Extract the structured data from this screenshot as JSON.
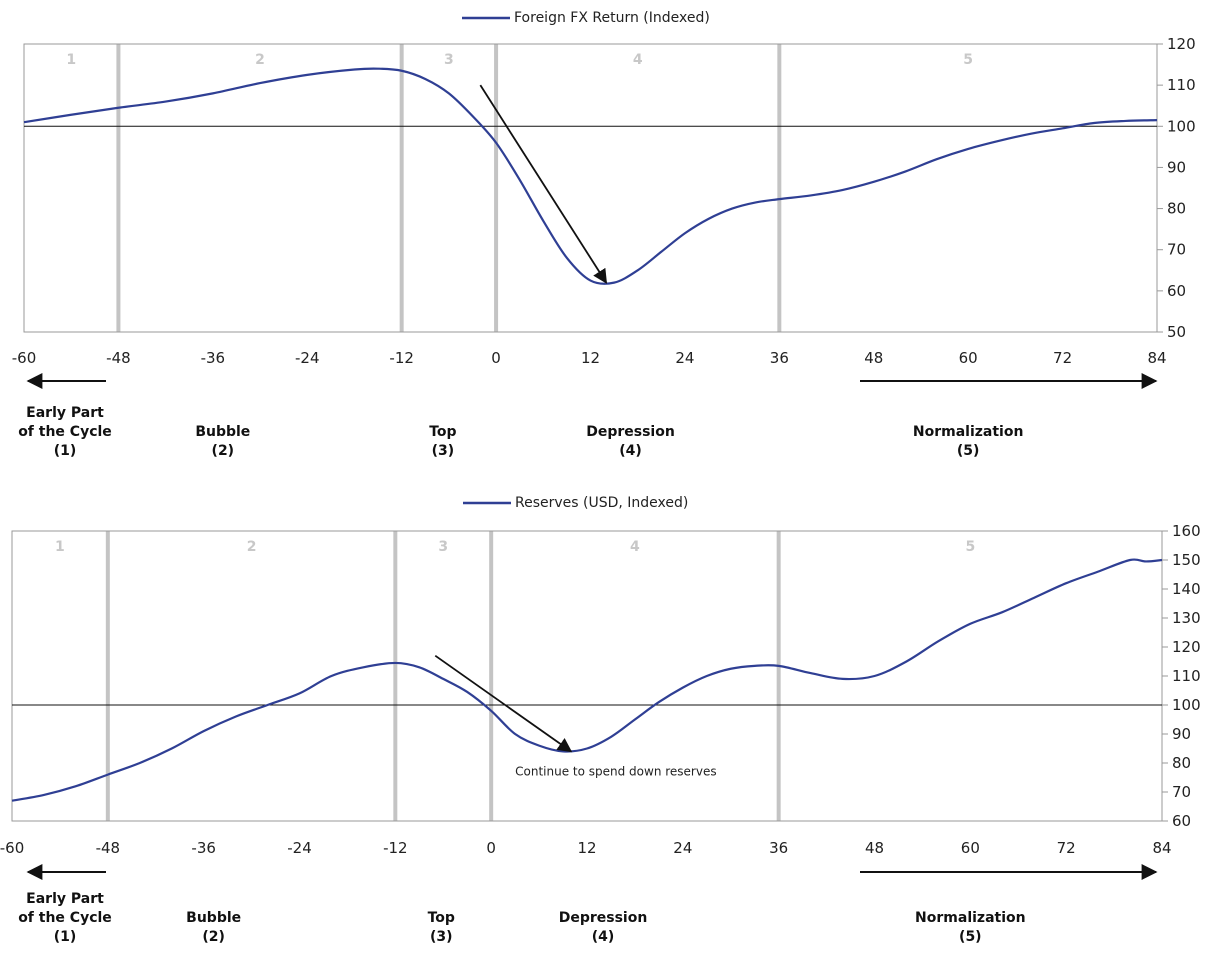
{
  "chart_data": [
    {
      "type": "line",
      "legend": "Foreign FX Return (Indexed)",
      "legend_position": "top-center",
      "color": "#2f3f94",
      "xlim": [
        -60,
        84
      ],
      "ylim": [
        50,
        120
      ],
      "x_ticks": [
        -60,
        -48,
        -36,
        -24,
        -12,
        0,
        12,
        24,
        36,
        48,
        60,
        72,
        84
      ],
      "y_ticks": [
        50,
        60,
        70,
        80,
        90,
        100,
        110,
        120
      ],
      "reference_line": 100,
      "phase_boundaries": [
        -48,
        -12,
        0,
        36
      ],
      "phase_numbers": [
        "1",
        "2",
        "3",
        "4",
        "5"
      ],
      "phase_labels": [
        {
          "lines": [
            "Early Part",
            "of the Cycle",
            "(1)"
          ]
        },
        {
          "lines": [
            "Bubble",
            "(2)"
          ]
        },
        {
          "lines": [
            "Top",
            "(3)"
          ]
        },
        {
          "lines": [
            "Depression",
            "(4)"
          ]
        },
        {
          "lines": [
            "Normalization",
            "(5)"
          ]
        }
      ],
      "arrow": {
        "from": [
          -2,
          110
        ],
        "to": [
          14,
          62
        ]
      },
      "annotation": "",
      "x": [
        -60,
        -54,
        -48,
        -42,
        -36,
        -30,
        -24,
        -18,
        -15,
        -12,
        -9,
        -6,
        -3,
        0,
        3,
        6,
        9,
        12,
        15,
        18,
        21,
        24,
        27,
        30,
        33,
        36,
        40,
        44,
        48,
        52,
        56,
        60,
        64,
        68,
        72,
        76,
        80,
        84
      ],
      "y": [
        101,
        102.8,
        104.5,
        106,
        108,
        110.5,
        112.5,
        113.8,
        114,
        113.5,
        111.5,
        108,
        102.5,
        96,
        87,
        77,
        68,
        62.5,
        62,
        65,
        69.5,
        74,
        77.5,
        80,
        81.5,
        82.3,
        83.2,
        84.5,
        86.5,
        89,
        92,
        94.5,
        96.5,
        98.2,
        99.5,
        100.8,
        101.3,
        101.5
      ]
    },
    {
      "type": "line",
      "legend": "Reserves (USD, Indexed)",
      "legend_position": "top-center",
      "color": "#2f3f94",
      "xlim": [
        -60,
        84
      ],
      "ylim": [
        60,
        160
      ],
      "x_ticks": [
        -60,
        -48,
        -36,
        -24,
        -12,
        0,
        12,
        24,
        36,
        48,
        60,
        72,
        84
      ],
      "y_ticks": [
        60,
        70,
        80,
        90,
        100,
        110,
        120,
        130,
        140,
        150,
        160
      ],
      "reference_line": 100,
      "phase_boundaries": [
        -48,
        -12,
        0,
        36
      ],
      "phase_numbers": [
        "1",
        "2",
        "3",
        "4",
        "5"
      ],
      "phase_labels": [
        {
          "lines": [
            "Early Part",
            "of the Cycle",
            "(1)"
          ]
        },
        {
          "lines": [
            "Bubble",
            "(2)"
          ]
        },
        {
          "lines": [
            "Top",
            "(3)"
          ]
        },
        {
          "lines": [
            "Depression",
            "(4)"
          ]
        },
        {
          "lines": [
            "Normalization",
            "(5)"
          ]
        }
      ],
      "arrow": {
        "from": [
          -7,
          117
        ],
        "to": [
          10,
          84
        ]
      },
      "annotation": "Continue to spend down reserves",
      "annotation_at": [
        3,
        77
      ],
      "x": [
        -60,
        -56,
        -52,
        -48,
        -44,
        -40,
        -36,
        -32,
        -28,
        -24,
        -20,
        -16,
        -12,
        -9,
        -6,
        -3,
        0,
        3,
        6,
        9,
        12,
        15,
        18,
        21,
        24,
        27,
        30,
        33,
        36,
        40,
        44,
        48,
        52,
        56,
        60,
        64,
        68,
        72,
        76,
        80,
        82,
        84
      ],
      "y": [
        67,
        69,
        72,
        76,
        80,
        85,
        91,
        96,
        100,
        104,
        110,
        113,
        114.5,
        113,
        109,
        104.5,
        98,
        90,
        86,
        84,
        85,
        89,
        95,
        101,
        106,
        110,
        112.5,
        113.5,
        113.5,
        111,
        109,
        110,
        115,
        122,
        128,
        132,
        137,
        142,
        146,
        150,
        149.5,
        150
      ]
    }
  ]
}
